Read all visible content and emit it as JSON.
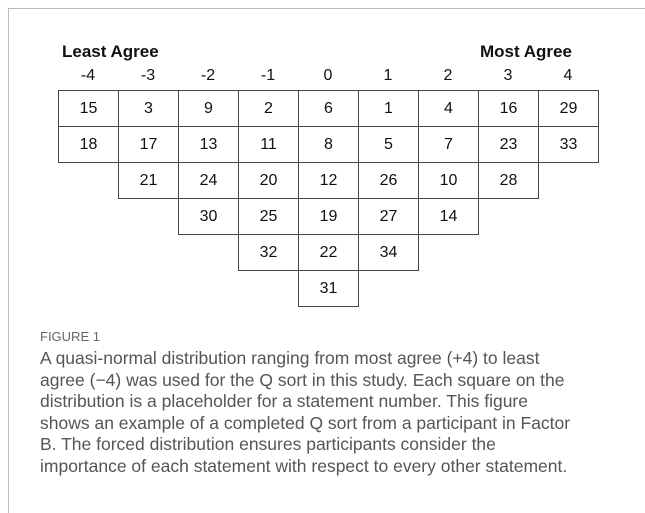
{
  "figure": {
    "left_label": "Least Agree",
    "right_label": "Most Agree",
    "columns": [
      {
        "label": "-4",
        "cells": [
          "15",
          "18"
        ]
      },
      {
        "label": "-3",
        "cells": [
          "3",
          "17",
          "21"
        ]
      },
      {
        "label": "-2",
        "cells": [
          "9",
          "13",
          "24",
          "30"
        ]
      },
      {
        "label": "-1",
        "cells": [
          "2",
          "11",
          "20",
          "25",
          "32"
        ]
      },
      {
        "label": "0",
        "cells": [
          "6",
          "8",
          "12",
          "19",
          "22",
          "31"
        ]
      },
      {
        "label": "1",
        "cells": [
          "1",
          "5",
          "26",
          "27",
          "34"
        ]
      },
      {
        "label": "2",
        "cells": [
          "4",
          "7",
          "10",
          "14"
        ]
      },
      {
        "label": "3",
        "cells": [
          "16",
          "23",
          "28"
        ]
      },
      {
        "label": "4",
        "cells": [
          "29",
          "33"
        ]
      }
    ]
  },
  "caption": {
    "label": "FIGURE 1",
    "lines": [
      "A quasi-normal distribution ranging from most agree (+4) to least",
      "agree (−4) was used for the Q sort in this study. Each square on the",
      "distribution is a placeholder for a statement number. This figure",
      "shows an example of a completed Q sort from a participant in Factor",
      "B. The forced distribution ensures participants consider the",
      "importance of each statement with respect to every other statement."
    ]
  }
}
